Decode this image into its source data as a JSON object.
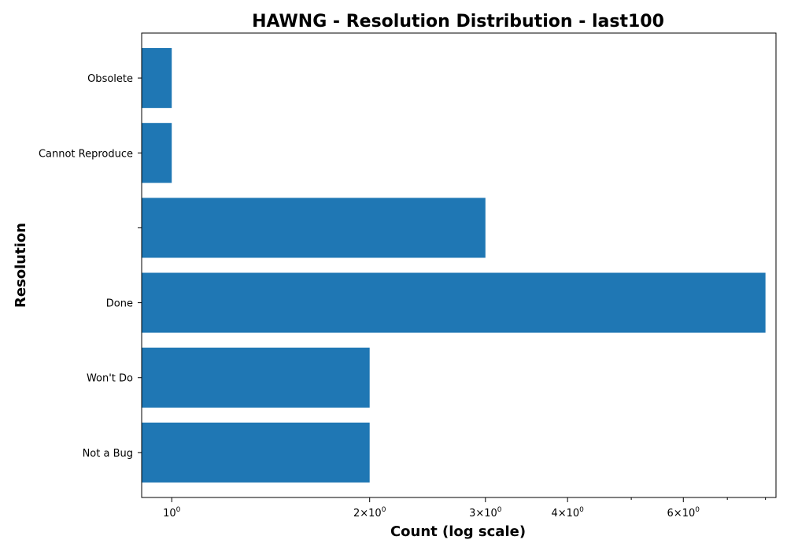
{
  "chart_data": {
    "type": "bar",
    "orientation": "horizontal",
    "title": "HAWNG - Resolution Distribution - last100",
    "xlabel": "Count (log scale)",
    "ylabel": "Resolution",
    "x_scale": "log",
    "xlim": [
      0.9,
      8.3
    ],
    "x_ticks": [
      {
        "value": 1,
        "base": "10",
        "exp": "0"
      },
      {
        "value": 2,
        "base": "2×10",
        "exp": "0"
      },
      {
        "value": 3,
        "base": "3×10",
        "exp": "0"
      },
      {
        "value": 4,
        "base": "4×10",
        "exp": "0"
      },
      {
        "value": 6,
        "base": "6×10",
        "exp": "0"
      }
    ],
    "x_minor_ticks": [
      5,
      7,
      8
    ],
    "categories": [
      "Not a Bug",
      "Won't Do",
      "Done",
      "",
      "Cannot Reproduce",
      "Obsolete"
    ],
    "values": [
      2,
      2,
      8,
      3,
      1,
      1
    ],
    "bar_color": "#1f77b4",
    "grid": false,
    "legend": "none"
  }
}
